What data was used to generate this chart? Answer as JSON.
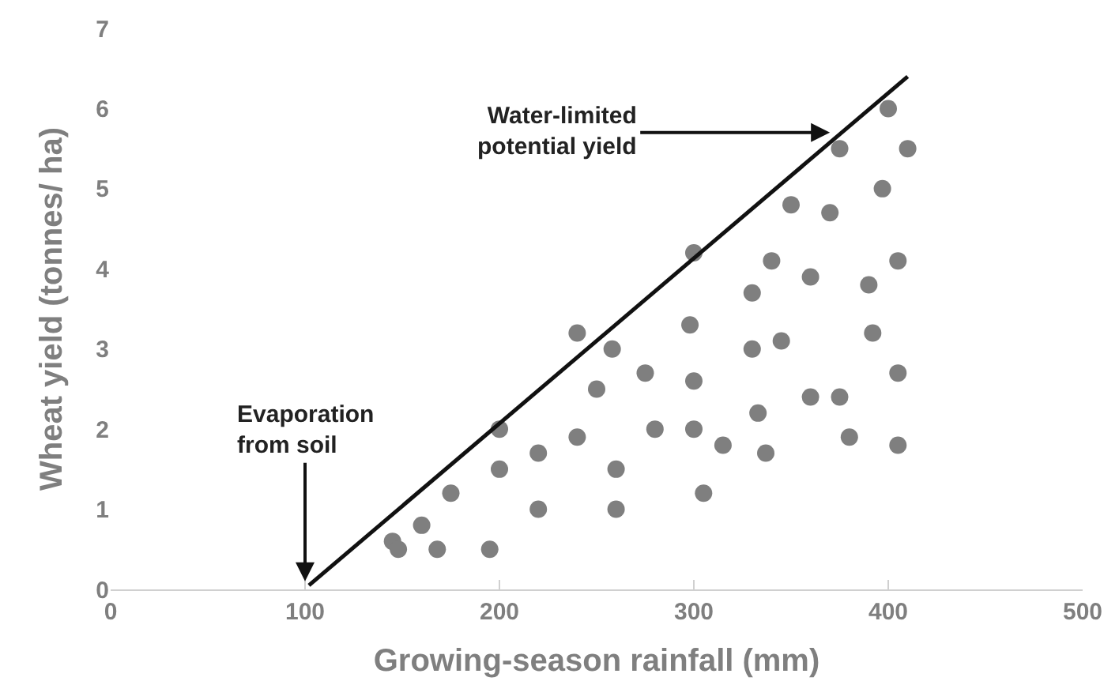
{
  "chart_data": {
    "type": "scatter",
    "xlabel": "Growing-season rainfall (mm)",
    "ylabel": "Wheat yield (tonnes/ ha)",
    "xlim": [
      0,
      500
    ],
    "xticks": [
      0,
      100,
      200,
      300,
      400,
      500
    ],
    "ylim": [
      0,
      7
    ],
    "yticks": [
      0,
      1,
      2,
      3,
      4,
      5,
      6,
      7
    ],
    "marker": "circle",
    "series": [
      {
        "color": "#7f7f7f",
        "x": [
          145,
          148,
          160,
          168,
          175,
          195,
          200,
          200,
          220,
          220,
          240,
          240,
          250,
          258,
          260,
          260,
          275,
          280,
          298,
          300,
          300,
          300,
          305,
          315,
          330,
          330,
          333,
          337,
          340,
          345,
          350,
          360,
          360,
          370,
          375,
          375,
          380,
          390,
          392,
          397,
          400,
          405,
          405,
          405,
          410
        ],
        "values": [
          0.6,
          0.5,
          0.8,
          0.5,
          1.2,
          0.5,
          1.5,
          2.0,
          1.7,
          1.0,
          3.2,
          1.9,
          2.5,
          3.0,
          1.5,
          1.0,
          2.7,
          2.0,
          3.3,
          4.2,
          2.6,
          2.0,
          1.2,
          1.8,
          3.7,
          3.0,
          2.2,
          1.7,
          4.1,
          3.1,
          4.8,
          3.9,
          2.4,
          4.7,
          5.5,
          2.4,
          1.9,
          3.8,
          3.2,
          5.0,
          6.0,
          4.1,
          2.7,
          1.8,
          5.5
        ]
      },
      {
        "type": "line",
        "marker": "none",
        "color": "#111111",
        "x": [
          102,
          410
        ],
        "values": [
          0.05,
          6.4
        ]
      }
    ],
    "annotations": [
      {
        "text": "Evaporation\nfrom soil",
        "x": 100,
        "y": 0.1
      },
      {
        "text": "Water-limited\npotential yield",
        "x": 370,
        "y": 5.7
      }
    ]
  }
}
